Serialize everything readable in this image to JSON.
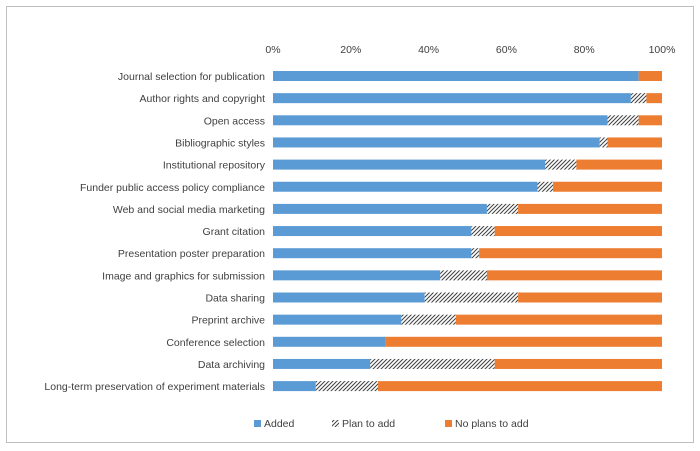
{
  "chart_data": {
    "type": "bar",
    "stacked": true,
    "orientation": "horizontal",
    "percent_stacked": true,
    "categories": [
      "Journal selection for publication",
      "Author rights and copyright",
      "Open access",
      "Bibliographic styles",
      "Institutional repository",
      "Funder public access policy compliance",
      "Web and social media marketing",
      "Grant citation",
      "Presentation poster preparation",
      "Image and graphics for submission",
      "Data sharing",
      "Preprint archive",
      "Conference selection",
      "Data archiving",
      "Long-term preservation of experiment materials"
    ],
    "series": [
      {
        "name": "Added",
        "color": "#5b9bd5",
        "pattern": "solid",
        "values": [
          94,
          92,
          86,
          84,
          70,
          68,
          55,
          51,
          51,
          43,
          39,
          33,
          29,
          25,
          11
        ]
      },
      {
        "name": "Plan to add",
        "color": "#404040",
        "pattern": "hatch",
        "values": [
          0,
          4,
          8,
          2,
          8,
          4,
          8,
          6,
          2,
          12,
          24,
          14,
          0,
          32,
          16
        ]
      },
      {
        "name": "No plans to add",
        "color": "#ed7d31",
        "pattern": "solid",
        "values": [
          6,
          4,
          6,
          14,
          22,
          28,
          37,
          43,
          47,
          45,
          37,
          53,
          71,
          43,
          73
        ]
      }
    ],
    "x_ticks": [
      "0%",
      "20%",
      "40%",
      "60%",
      "80%",
      "100%"
    ],
    "xlim": [
      0,
      100
    ],
    "x_axis_position": "top",
    "grid": false,
    "legend_position": "bottom"
  }
}
